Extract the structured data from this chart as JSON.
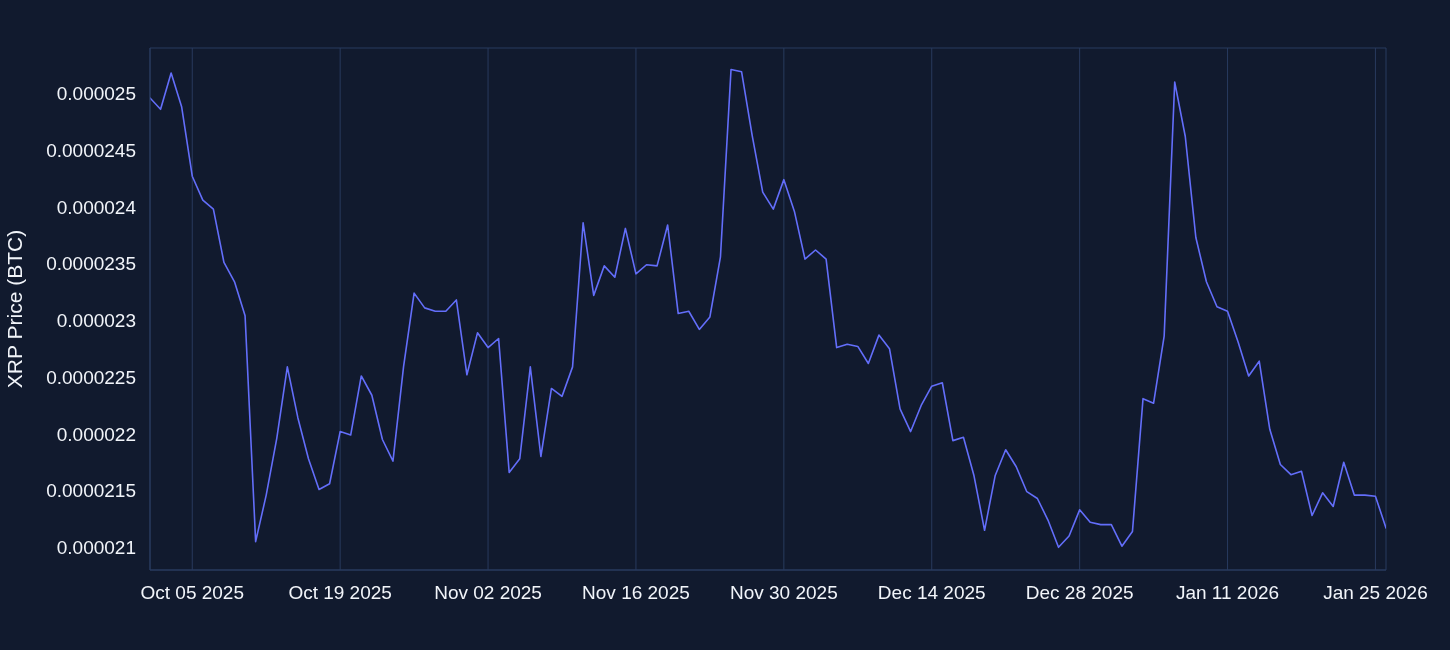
{
  "chart_data": {
    "type": "line",
    "ylabel": "XRP Price (BTC)",
    "x": [
      "2025-10-01",
      "2025-10-02",
      "2025-10-03",
      "2025-10-04",
      "2025-10-05",
      "2025-10-06",
      "2025-10-07",
      "2025-10-08",
      "2025-10-09",
      "2025-10-10",
      "2025-10-11",
      "2025-10-12",
      "2025-10-13",
      "2025-10-14",
      "2025-10-15",
      "2025-10-16",
      "2025-10-17",
      "2025-10-18",
      "2025-10-19",
      "2025-10-20",
      "2025-10-21",
      "2025-10-22",
      "2025-10-23",
      "2025-10-24",
      "2025-10-25",
      "2025-10-26",
      "2025-10-27",
      "2025-10-28",
      "2025-10-29",
      "2025-10-30",
      "2025-10-31",
      "2025-11-01",
      "2025-11-02",
      "2025-11-03",
      "2025-11-04",
      "2025-11-05",
      "2025-11-06",
      "2025-11-07",
      "2025-11-08",
      "2025-11-09",
      "2025-11-10",
      "2025-11-11",
      "2025-11-12",
      "2025-11-13",
      "2025-11-14",
      "2025-11-15",
      "2025-11-16",
      "2025-11-17",
      "2025-11-18",
      "2025-11-19",
      "2025-11-20",
      "2025-11-21",
      "2025-11-22",
      "2025-11-23",
      "2025-11-24",
      "2025-11-25",
      "2025-11-26",
      "2025-11-27",
      "2025-11-28",
      "2025-11-29",
      "2025-11-30",
      "2025-12-01",
      "2025-12-02",
      "2025-12-03",
      "2025-12-04",
      "2025-12-05",
      "2025-12-06",
      "2025-12-07",
      "2025-12-08",
      "2025-12-09",
      "2025-12-10",
      "2025-12-11",
      "2025-12-12",
      "2025-12-13",
      "2025-12-14",
      "2025-12-15",
      "2025-12-16",
      "2025-12-17",
      "2025-12-18",
      "2025-12-19",
      "2025-12-20",
      "2025-12-21",
      "2025-12-22",
      "2025-12-23",
      "2025-12-24",
      "2025-12-25",
      "2025-12-26",
      "2025-12-27",
      "2025-12-28",
      "2025-12-29",
      "2025-12-30",
      "2025-12-31",
      "2026-01-01",
      "2026-01-02",
      "2026-01-03",
      "2026-01-04",
      "2026-01-05",
      "2026-01-06",
      "2026-01-07",
      "2026-01-08",
      "2026-01-09",
      "2026-01-10",
      "2026-01-11",
      "2026-01-12",
      "2026-01-13",
      "2026-01-14",
      "2026-01-15",
      "2026-01-16",
      "2026-01-17",
      "2026-01-18",
      "2026-01-19",
      "2026-01-20",
      "2026-01-21",
      "2026-01-22",
      "2026-01-23",
      "2026-01-24",
      "2026-01-25",
      "2026-01-26"
    ],
    "series": [
      {
        "color": "#636efa",
        "values": [
          2.496e-05,
          2.486e-05,
          2.518e-05,
          2.488e-05,
          2.427e-05,
          2.406e-05,
          2.398e-05,
          2.351e-05,
          2.334e-05,
          2.304e-05,
          2.105e-05,
          2.146e-05,
          2.196e-05,
          2.259e-05,
          2.214e-05,
          2.178e-05,
          2.151e-05,
          2.156e-05,
          2.202e-05,
          2.199e-05,
          2.251e-05,
          2.234e-05,
          2.195e-05,
          2.176e-05,
          2.259e-05,
          2.324e-05,
          2.311e-05,
          2.308e-05,
          2.308e-05,
          2.318e-05,
          2.252e-05,
          2.289e-05,
          2.276e-05,
          2.284e-05,
          2.166e-05,
          2.178e-05,
          2.259e-05,
          2.18e-05,
          2.24e-05,
          2.233e-05,
          2.259e-05,
          2.386e-05,
          2.322e-05,
          2.348e-05,
          2.338e-05,
          2.381e-05,
          2.341e-05,
          2.349e-05,
          2.348e-05,
          2.384e-05,
          2.306e-05,
          2.308e-05,
          2.292e-05,
          2.303e-05,
          2.356e-05,
          2.521e-05,
          2.519e-05,
          2.463e-05,
          2.413e-05,
          2.398e-05,
          2.424e-05,
          2.396e-05,
          2.354e-05,
          2.362e-05,
          2.354e-05,
          2.276e-05,
          2.279e-05,
          2.277e-05,
          2.262e-05,
          2.287e-05,
          2.275e-05,
          2.222e-05,
          2.202e-05,
          2.225e-05,
          2.242e-05,
          2.245e-05,
          2.194e-05,
          2.197e-05,
          2.163e-05,
          2.115e-05,
          2.163e-05,
          2.186e-05,
          2.171e-05,
          2.149e-05,
          2.143e-05,
          2.124e-05,
          2.1e-05,
          2.11e-05,
          2.133e-05,
          2.122e-05,
          2.12e-05,
          2.12e-05,
          2.101e-05,
          2.114e-05,
          2.231e-05,
          2.227e-05,
          2.286e-05,
          2.51e-05,
          2.462e-05,
          2.373e-05,
          2.334e-05,
          2.312e-05,
          2.308e-05,
          2.281e-05,
          2.251e-05,
          2.264e-05,
          2.204e-05,
          2.173e-05,
          2.164e-05,
          2.167e-05,
          2.128e-05,
          2.148e-05,
          2.136e-05,
          2.175e-05,
          2.146e-05,
          2.146e-05,
          2.145e-05,
          2.117e-05
        ]
      }
    ],
    "xlim": [
      "2025-10-01",
      "2026-01-26"
    ],
    "xticks": [
      {
        "value": "2025-10-05",
        "label": "Oct 05 2025"
      },
      {
        "value": "2025-10-19",
        "label": "Oct 19 2025"
      },
      {
        "value": "2025-11-02",
        "label": "Nov 02 2025"
      },
      {
        "value": "2025-11-16",
        "label": "Nov 16 2025"
      },
      {
        "value": "2025-11-30",
        "label": "Nov 30 2025"
      },
      {
        "value": "2025-12-14",
        "label": "Dec 14 2025"
      },
      {
        "value": "2025-12-28",
        "label": "Dec 28 2025"
      },
      {
        "value": "2026-01-11",
        "label": "Jan 11 2026"
      },
      {
        "value": "2026-01-25",
        "label": "Jan 25 2026"
      }
    ],
    "ylim": [
      2.08e-05,
      2.54e-05
    ],
    "yticks": [
      {
        "value": 2.1e-05,
        "label": "0.000021"
      },
      {
        "value": 2.15e-05,
        "label": "0.0000215"
      },
      {
        "value": 2.2e-05,
        "label": "0.000022"
      },
      {
        "value": 2.25e-05,
        "label": "0.0000225"
      },
      {
        "value": 2.3e-05,
        "label": "0.000023"
      },
      {
        "value": 2.35e-05,
        "label": "0.0000235"
      },
      {
        "value": 2.4e-05,
        "label": "0.000024"
      },
      {
        "value": 2.45e-05,
        "label": "0.0000245"
      },
      {
        "value": 2.5e-05,
        "label": "0.000025"
      }
    ],
    "grid": true,
    "marker": "none",
    "line_style": "solid"
  }
}
